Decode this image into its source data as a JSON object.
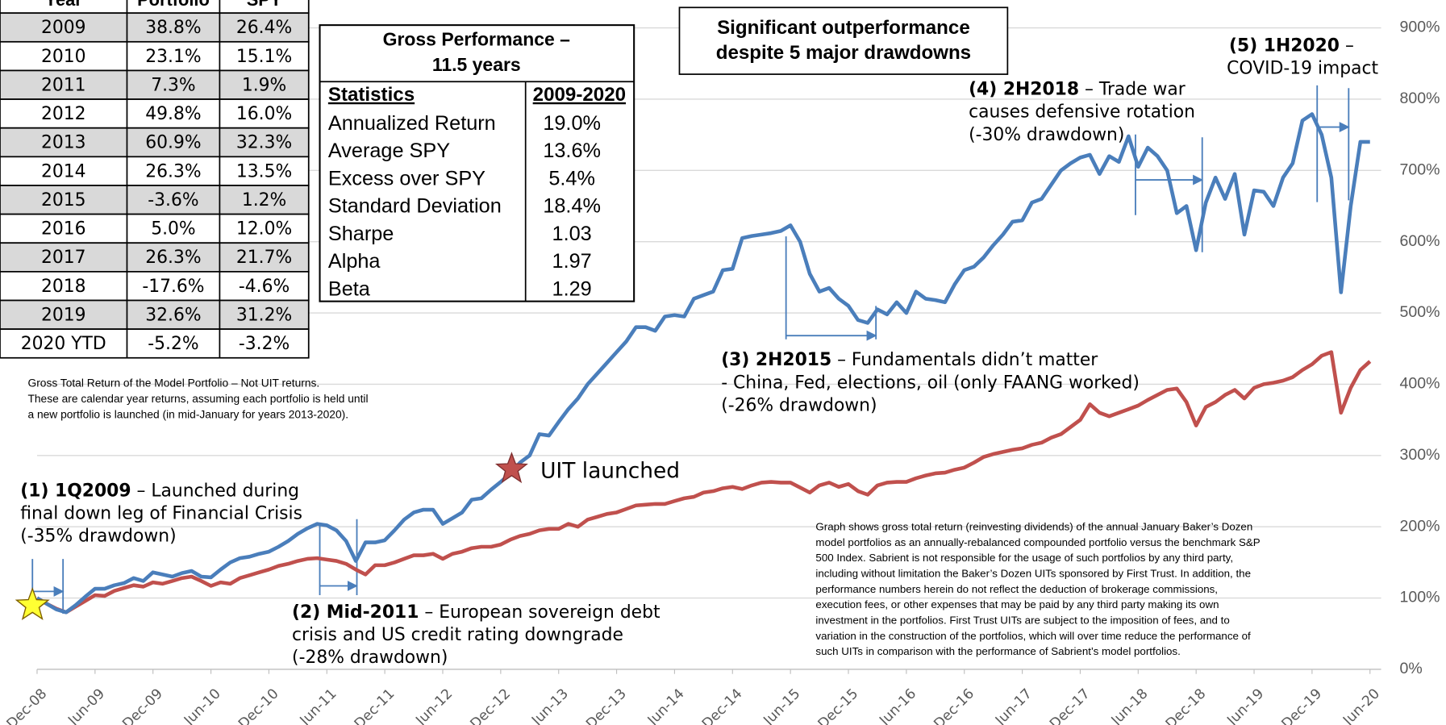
{
  "table": {
    "header": [
      "Year",
      "Portfolio",
      "SPY"
    ],
    "rows": [
      [
        "2009",
        "38.8%",
        "26.4%"
      ],
      [
        "2010",
        "23.1%",
        "15.1%"
      ],
      [
        "2011",
        "7.3%",
        "1.9%"
      ],
      [
        "2012",
        "49.8%",
        "16.0%"
      ],
      [
        "2013",
        "60.9%",
        "32.3%"
      ],
      [
        "2014",
        "26.3%",
        "13.5%"
      ],
      [
        "2015",
        "-3.6%",
        "1.2%"
      ],
      [
        "2016",
        "5.0%",
        "12.0%"
      ],
      [
        "2017",
        "26.3%",
        "21.7%"
      ],
      [
        "2018",
        "-17.6%",
        "-4.6%"
      ],
      [
        "2019",
        "32.6%",
        "31.2%"
      ],
      [
        "2020 YTD",
        "-5.2%",
        "-3.2%"
      ]
    ]
  },
  "note": [
    "Gross Total Return of the Model Portfolio – Not UIT returns.",
    "These are calendar year returns, assuming each portfolio is held until",
    "a new portfolio is launched (in mid-January for years 2013-2020)."
  ],
  "stats": {
    "title": [
      "Gross Performance –",
      "11.5 years"
    ],
    "header": [
      "Statistics",
      "2009-2020"
    ],
    "rows": [
      [
        "Annualized Return",
        "19.0%"
      ],
      [
        "Average SPY",
        "13.6%"
      ],
      [
        "Excess over SPY",
        "5.4%"
      ],
      [
        "Standard Deviation",
        "18.4%"
      ],
      [
        "Sharpe",
        "1.03"
      ],
      [
        "Alpha",
        "1.97"
      ],
      [
        "Beta",
        "1.29"
      ]
    ]
  },
  "headline": [
    "Significant outperformance",
    "despite 5 major drawdowns"
  ],
  "disclaimer": [
    "Graph shows gross total return (reinvesting dividends) of the annual January Baker’s Dozen",
    "model portfolios as an annually-rebalanced compounded portfolio versus the benchmark S&P",
    "500 Index. Sabrient is not responsible for the usage of such portfolios by any third party,",
    "including without limitation the Baker’s Dozen UITs sponsored by First Trust. In addition, the",
    "performance numbers herein do not reflect the deduction of brokerage commissions,",
    "execution fees, or other expenses that may be paid by any third party making its own",
    "investment in the portfolios. First Trust UITs are subject to the imposition of fees, and to",
    "variation in the construction of the portfolios, which will over time reduce the performance of",
    "such UITs in comparison with the performance of Sabrient’s model portfolios."
  ],
  "chart_data": {
    "type": "line",
    "categories": [
      "Dec-08",
      null,
      null,
      null,
      null,
      null,
      "Jun-09",
      null,
      null,
      null,
      null,
      null,
      "Dec-09",
      null,
      null,
      null,
      null,
      null,
      "Jun-10",
      null,
      null,
      null,
      null,
      null,
      "Dec-10",
      null,
      null,
      null,
      null,
      null,
      "Jun-11",
      null,
      null,
      null,
      null,
      null,
      "Dec-11",
      null,
      null,
      null,
      null,
      null,
      "Jun-12",
      null,
      null,
      null,
      null,
      null,
      "Dec-12",
      null,
      null,
      null,
      null,
      null,
      "Jun-13",
      null,
      null,
      null,
      null,
      null,
      "Dec-13",
      null,
      null,
      null,
      null,
      null,
      "Jun-14",
      null,
      null,
      null,
      null,
      null,
      "Dec-14",
      null,
      null,
      null,
      null,
      null,
      "Jun-15",
      null,
      null,
      null,
      null,
      null,
      "Dec-15",
      null,
      null,
      null,
      null,
      null,
      "Jun-16",
      null,
      null,
      null,
      null,
      null,
      "Dec-16",
      null,
      null,
      null,
      null,
      null,
      "Jun-17",
      null,
      null,
      null,
      null,
      null,
      "Dec-17",
      null,
      null,
      null,
      null,
      null,
      "Jun-18",
      null,
      null,
      null,
      null,
      null,
      "Dec-18",
      null,
      null,
      null,
      null,
      null,
      "Jun-19",
      null,
      null,
      null,
      null,
      null,
      "Dec-19",
      null,
      null,
      null,
      null,
      null,
      "Jun-20"
    ],
    "series": [
      {
        "color": "#4a7ebb",
        "values": [
          100,
          92,
          84,
          80,
          90,
          102,
          113,
          113,
          118,
          121,
          128,
          124,
          136,
          133,
          130,
          135,
          138,
          130,
          129,
          140,
          150,
          156,
          158,
          162,
          165,
          172,
          180,
          190,
          198,
          204,
          202,
          195,
          180,
          152,
          178,
          178,
          181,
          195,
          210,
          220,
          224,
          224,
          204,
          212,
          220,
          238,
          240,
          252,
          263,
          275,
          290,
          300,
          330,
          328,
          347,
          365,
          380,
          400,
          415,
          430,
          445,
          460,
          480,
          480,
          475,
          495,
          497,
          495,
          520,
          525,
          530,
          560,
          562,
          605,
          608,
          610,
          612,
          615,
          623,
          600,
          555,
          530,
          535,
          520,
          510,
          490,
          486,
          505,
          498,
          515,
          500,
          530,
          520,
          518,
          515,
          540,
          560,
          565,
          578,
          595,
          610,
          628,
          630,
          655,
          660,
          680,
          700,
          710,
          718,
          722,
          695,
          720,
          712,
          748,
          705,
          732,
          720,
          700,
          640,
          650,
          588,
          655,
          690,
          660,
          695,
          610,
          672,
          670,
          650,
          690,
          710,
          770,
          779,
          750,
          690,
          529,
          650,
          740,
          740
        ]
      },
      {
        "color": "#c0504d",
        "values": [
          100,
          92,
          85,
          80,
          88,
          96,
          104,
          103,
          110,
          114,
          118,
          116,
          122,
          120,
          124,
          128,
          130,
          124,
          117,
          122,
          120,
          128,
          132,
          136,
          140,
          145,
          148,
          152,
          155,
          156,
          154,
          152,
          148,
          140,
          133,
          146,
          146,
          150,
          155,
          160,
          160,
          162,
          155,
          162,
          165,
          170,
          172,
          172,
          175,
          182,
          187,
          190,
          195,
          197,
          197,
          204,
          200,
          210,
          214,
          218,
          220,
          225,
          230,
          231,
          232,
          232,
          236,
          240,
          242,
          248,
          250,
          254,
          256,
          253,
          258,
          262,
          263,
          262,
          262,
          255,
          248,
          258,
          262,
          256,
          260,
          250,
          245,
          258,
          262,
          263,
          263,
          268,
          272,
          275,
          276,
          280,
          283,
          290,
          298,
          302,
          305,
          308,
          310,
          315,
          318,
          325,
          330,
          340,
          350,
          372,
          360,
          355,
          360,
          365,
          370,
          378,
          385,
          392,
          394,
          375,
          342,
          368,
          375,
          385,
          392,
          380,
          395,
          400,
          402,
          405,
          410,
          420,
          428,
          440,
          445,
          360,
          395,
          420,
          432
        ]
      }
    ],
    "ylim": [
      0,
      900
    ],
    "yticks": [
      {
        "value": 0,
        "label": "0%"
      },
      {
        "value": 100,
        "label": "100%"
      },
      {
        "value": 200,
        "label": "200%"
      },
      {
        "value": 300,
        "label": "300%"
      },
      {
        "value": 400,
        "label": "400%"
      },
      {
        "value": 500,
        "label": "500%"
      },
      {
        "value": 600,
        "label": "600%"
      },
      {
        "value": 700,
        "label": "700%"
      },
      {
        "value": 800,
        "label": "800%"
      },
      {
        "value": 900,
        "label": "900%"
      }
    ],
    "grid": true,
    "star_label": "UIT launched",
    "annotations": [
      {
        "label": "(1) 1Q2009",
        "text": [
          " – Launched during",
          "final down leg of Financial Crisis",
          "(-35% drawdown)"
        ]
      },
      {
        "label": "(2) Mid-2011",
        "text": [
          " – European sovereign debt",
          "crisis and US credit rating downgrade",
          "(-28% drawdown)"
        ]
      },
      {
        "label": "(3) 2H2015",
        "text": [
          " – Fundamentals didn’t matter",
          "- China, Fed, elections, oil (only FAANG worked)",
          "(-26% drawdown)"
        ]
      },
      {
        "label": "(4) 2H2018",
        "text": [
          " – Trade war",
          "causes defensive rotation",
          "(-30% drawdown)"
        ]
      },
      {
        "label": "(5) 1H2020",
        "text": [
          " –",
          "COVID-19 impact"
        ]
      }
    ]
  }
}
